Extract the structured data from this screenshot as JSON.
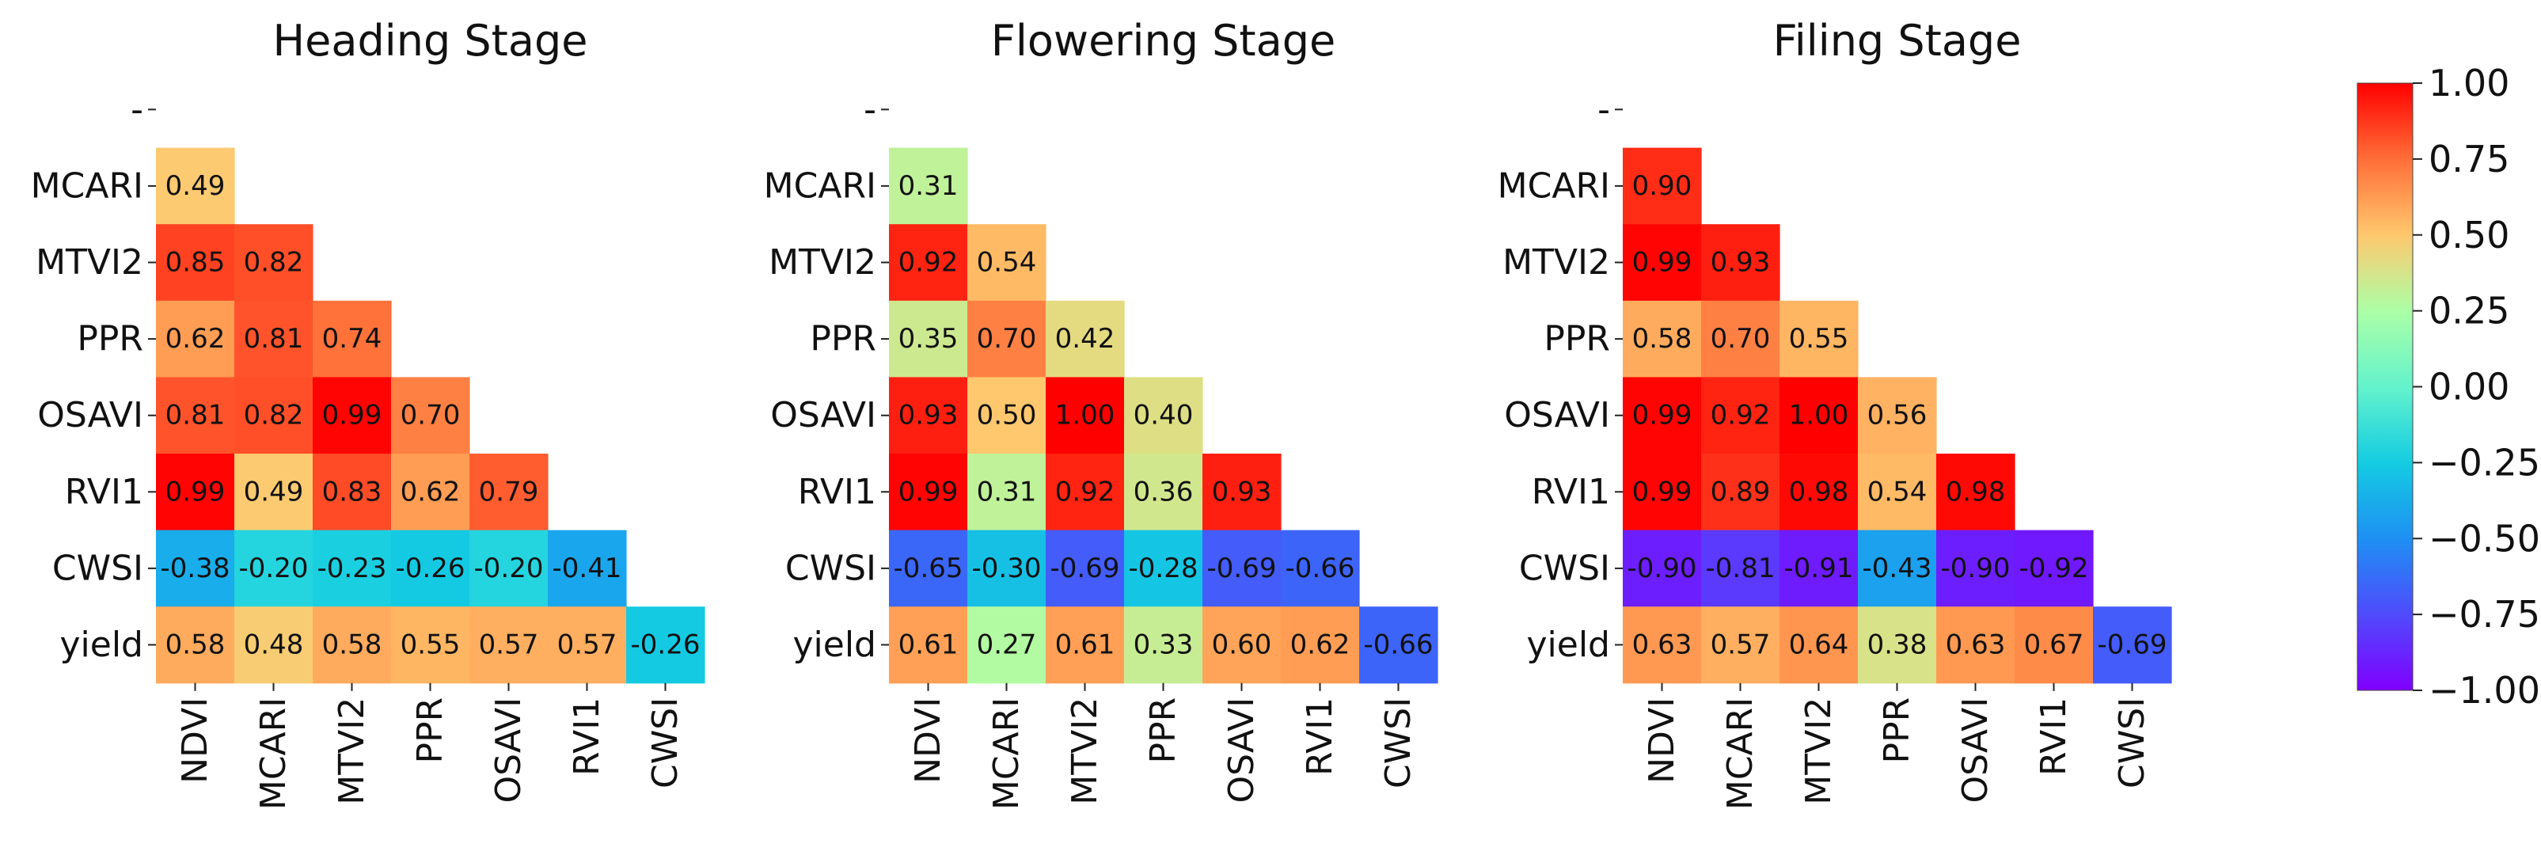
{
  "chart_data": [
    {
      "type": "heatmap",
      "title": "Heading Stage",
      "row_labels": [
        "-",
        "MCARI",
        "MTVI2",
        "PPR",
        "OSAVI",
        "RVI1",
        "CWSI",
        "yield"
      ],
      "col_labels": [
        "NDVI",
        "MCARI",
        "MTVI2",
        "PPR",
        "OSAVI",
        "RVI1",
        "CWSI"
      ],
      "values": [
        [
          "0.49"
        ],
        [
          "0.85",
          "0.82"
        ],
        [
          "0.62",
          "0.81",
          "0.74"
        ],
        [
          "0.81",
          "0.82",
          "0.99",
          "0.70"
        ],
        [
          "0.99",
          "0.49",
          "0.83",
          "0.62",
          "0.79"
        ],
        [
          "-0.38",
          "-0.20",
          "-0.23",
          "-0.26",
          "-0.20",
          "-0.41"
        ],
        [
          "0.58",
          "0.48",
          "0.58",
          "0.55",
          "0.57",
          "0.57",
          "-0.26"
        ]
      ]
    },
    {
      "type": "heatmap",
      "title": "Flowering Stage",
      "row_labels": [
        "-",
        "MCARI",
        "MTVI2",
        "PPR",
        "OSAVI",
        "RVI1",
        "CWSI",
        "yield"
      ],
      "col_labels": [
        "NDVI",
        "MCARI",
        "MTVI2",
        "PPR",
        "OSAVI",
        "RVI1",
        "CWSI"
      ],
      "values": [
        [
          "0.31"
        ],
        [
          "0.92",
          "0.54"
        ],
        [
          "0.35",
          "0.70",
          "0.42"
        ],
        [
          "0.93",
          "0.50",
          "1.00",
          "0.40"
        ],
        [
          "0.99",
          "0.31",
          "0.92",
          "0.36",
          "0.93"
        ],
        [
          "-0.65",
          "-0.30",
          "-0.69",
          "-0.28",
          "-0.69",
          "-0.66"
        ],
        [
          "0.61",
          "0.27",
          "0.61",
          "0.33",
          "0.60",
          "0.62",
          "-0.66"
        ]
      ]
    },
    {
      "type": "heatmap",
      "title": "Filing Stage",
      "row_labels": [
        "-",
        "MCARI",
        "MTVI2",
        "PPR",
        "OSAVI",
        "RVI1",
        "CWSI",
        "yield"
      ],
      "col_labels": [
        "NDVI",
        "MCARI",
        "MTVI2",
        "PPR",
        "OSAVI",
        "RVI1",
        "CWSI"
      ],
      "values": [
        [
          "0.90"
        ],
        [
          "0.99",
          "0.93"
        ],
        [
          "0.58",
          "0.70",
          "0.55"
        ],
        [
          "0.99",
          "0.92",
          "1.00",
          "0.56"
        ],
        [
          "0.99",
          "0.89",
          "0.98",
          "0.54",
          "0.98"
        ],
        [
          "-0.90",
          "-0.81",
          "-0.91",
          "-0.43",
          "-0.90",
          "-0.92"
        ],
        [
          "0.63",
          "0.57",
          "0.64",
          "0.38",
          "0.63",
          "0.67",
          "-0.69"
        ]
      ]
    }
  ],
  "colorbar": {
    "colormap": "rainbow",
    "min": -1.0,
    "max": 1.0,
    "ticks": [
      "1.00",
      "0.75",
      "0.50",
      "0.25",
      "0.00",
      "−0.25",
      "−0.50",
      "−0.75",
      "−1.00"
    ]
  }
}
